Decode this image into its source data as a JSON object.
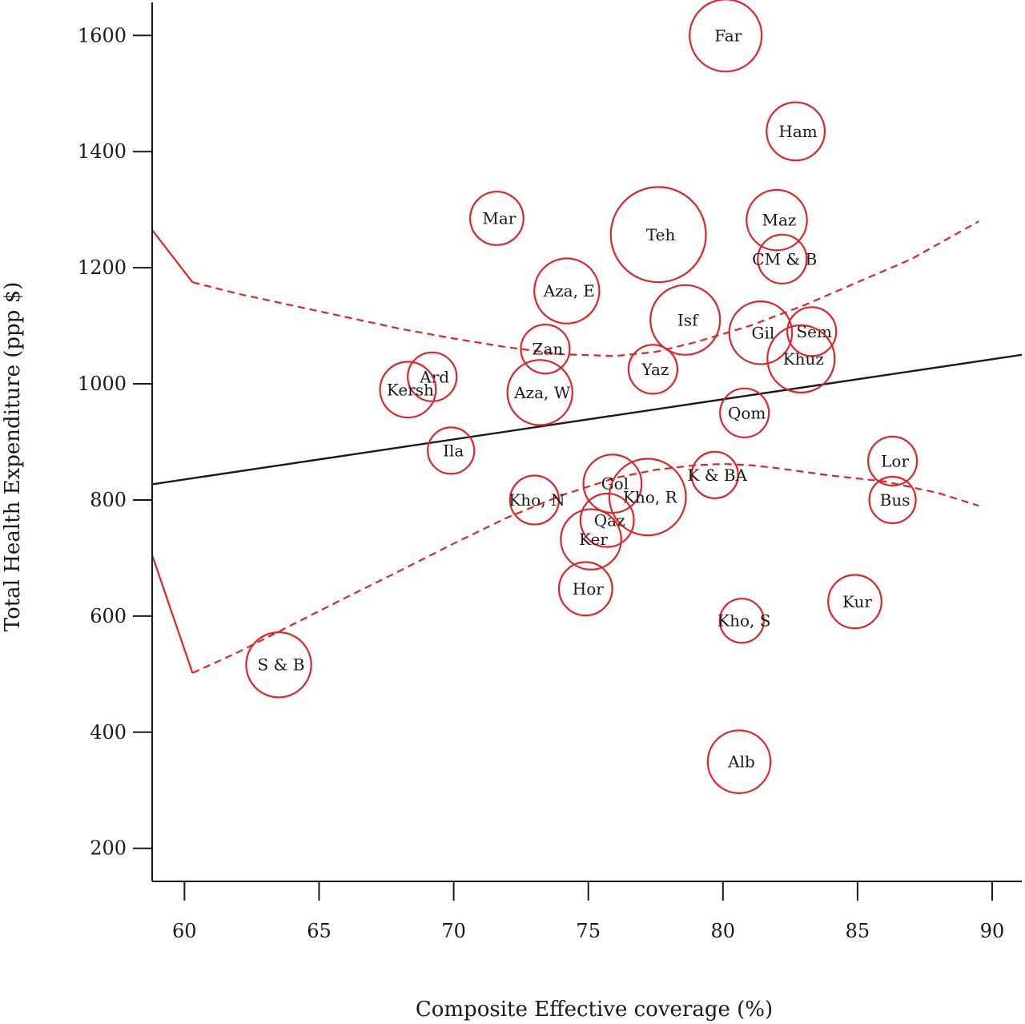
{
  "chart_data": {
    "type": "scatter",
    "title": "",
    "xlabel": "Composite Effective coverage (%)",
    "ylabel": "Total Health Expenditure (ppp $)",
    "xlim": [
      58.8,
      91.1
    ],
    "ylim": [
      143,
      1657
    ],
    "x_ticks": [
      60,
      65,
      70,
      75,
      80,
      85,
      90
    ],
    "y_ticks": [
      200,
      400,
      600,
      800,
      1000,
      1200,
      1400,
      1600
    ],
    "grid": false,
    "legend": "none",
    "colors": {
      "points": "#e0242a",
      "fit": "#1a1a1a",
      "ci": "#e0242a",
      "text": "#1a1a1a"
    },
    "points": [
      {
        "label": "Far",
        "x": 80.1,
        "y": 1600,
        "size": 1.55
      },
      {
        "label": "Ham",
        "x": 82.7,
        "y": 1435,
        "size": 1.25
      },
      {
        "label": "Mar",
        "x": 71.6,
        "y": 1285,
        "size": 1.15
      },
      {
        "label": "Teh",
        "x": 77.6,
        "y": 1257,
        "size": 2.05
      },
      {
        "label": "Maz",
        "x": 82.0,
        "y": 1282,
        "size": 1.3
      },
      {
        "label": "CM & B",
        "x": 82.2,
        "y": 1215,
        "size": 1.05
      },
      {
        "label": "Aza, E",
        "x": 74.2,
        "y": 1160,
        "size": 1.4
      },
      {
        "label": "Isf",
        "x": 78.6,
        "y": 1110,
        "size": 1.5
      },
      {
        "label": "Gil",
        "x": 81.4,
        "y": 1088,
        "size": 1.35
      },
      {
        "label": "Sem",
        "x": 83.3,
        "y": 1090,
        "size": 1.05
      },
      {
        "label": "Khuz",
        "x": 82.9,
        "y": 1043,
        "size": 1.45
      },
      {
        "label": "Zan",
        "x": 73.4,
        "y": 1060,
        "size": 1.05
      },
      {
        "label": "Yaz",
        "x": 77.4,
        "y": 1025,
        "size": 1.05
      },
      {
        "label": "Ard",
        "x": 69.2,
        "y": 1012,
        "size": 1.05
      },
      {
        "label": "Kersh",
        "x": 68.3,
        "y": 990,
        "size": 1.2
      },
      {
        "label": "Aza, W",
        "x": 73.2,
        "y": 985,
        "size": 1.4
      },
      {
        "label": "Qom",
        "x": 80.8,
        "y": 950,
        "size": 1.05
      },
      {
        "label": "Ila",
        "x": 69.9,
        "y": 885,
        "size": 1.0
      },
      {
        "label": "Lor",
        "x": 86.3,
        "y": 867,
        "size": 1.05
      },
      {
        "label": "K & BA",
        "x": 79.7,
        "y": 843,
        "size": 1.0
      },
      {
        "label": "Gol",
        "x": 75.9,
        "y": 828,
        "size": 1.25
      },
      {
        "label": "Kho, R",
        "x": 77.2,
        "y": 805,
        "size": 1.65
      },
      {
        "label": "Kho, N",
        "x": 73.0,
        "y": 800,
        "size": 1.05
      },
      {
        "label": "Bus",
        "x": 86.3,
        "y": 800,
        "size": 1.0
      },
      {
        "label": "Qaz",
        "x": 75.7,
        "y": 765,
        "size": 1.15
      },
      {
        "label": "Ker",
        "x": 75.1,
        "y": 732,
        "size": 1.3
      },
      {
        "label": "Hor",
        "x": 74.9,
        "y": 647,
        "size": 1.15
      },
      {
        "label": "Kur",
        "x": 84.9,
        "y": 625,
        "size": 1.15
      },
      {
        "label": "Kho, S",
        "x": 80.7,
        "y": 592,
        "size": 0.95
      },
      {
        "label": "S & B",
        "x": 63.5,
        "y": 516,
        "size": 1.4
      },
      {
        "label": "Alb",
        "x": 80.6,
        "y": 349,
        "size": 1.35
      }
    ],
    "fit_line": {
      "x": [
        58.8,
        91.1
      ],
      "y": [
        827,
        1050
      ]
    },
    "ci_upper_solid": {
      "x": [
        58.8,
        60.3
      ],
      "y": [
        1265,
        1175
      ]
    },
    "ci_upper": {
      "x": [
        60.3,
        62,
        64,
        66,
        68,
        70,
        72,
        74,
        76,
        77.5,
        79,
        81,
        83,
        85,
        87,
        89.5
      ],
      "y": [
        1175,
        1155,
        1135,
        1115,
        1095,
        1078,
        1063,
        1051,
        1048,
        1055,
        1072,
        1100,
        1135,
        1175,
        1215,
        1280
      ]
    },
    "ci_lower_solid": {
      "x": [
        58.8,
        60.3
      ],
      "y": [
        705,
        502
      ]
    },
    "ci_lower": {
      "x": [
        60.3,
        62,
        64,
        66,
        68,
        70,
        72,
        74,
        76,
        77.5,
        79,
        80,
        81,
        82,
        84,
        86,
        88,
        89.5
      ],
      "y": [
        502,
        538,
        585,
        632,
        678,
        725,
        770,
        808,
        838,
        852,
        860,
        862,
        860,
        855,
        842,
        832,
        812,
        790
      ]
    }
  }
}
